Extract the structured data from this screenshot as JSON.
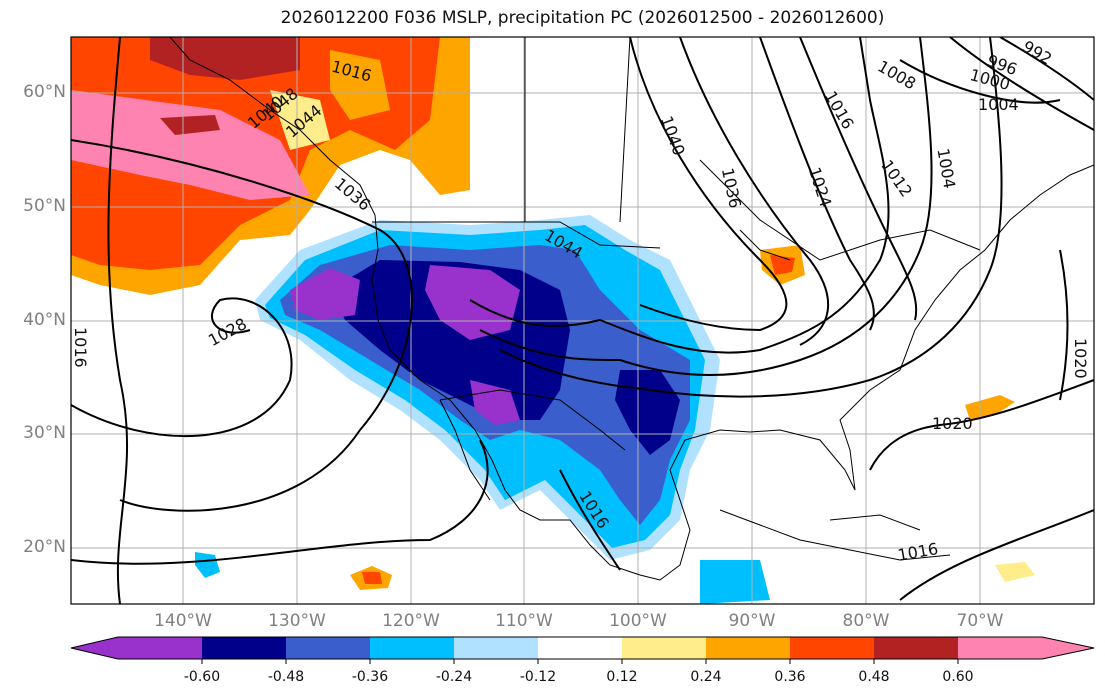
{
  "title": "2026012200 F036 MSLP, precipitation PC (2026012500 - 2026012600)",
  "lat_labels": [
    "60°N",
    "50°N",
    "40°N",
    "30°N",
    "20°N"
  ],
  "lon_labels": [
    "140°W",
    "130°W",
    "120°W",
    "110°W",
    "100°W",
    "90°W",
    "80°W",
    "70°W"
  ],
  "contour_labels": [
    "1016",
    "1028",
    "1044",
    "1040",
    "1036",
    "1024",
    "1016",
    "1008",
    "1000",
    "1004",
    "996",
    "992",
    "1012",
    "1004",
    "1020",
    "1020",
    "1016",
    "1016",
    "1040",
    "1048",
    "1044",
    "1036",
    "1016"
  ],
  "colorbar": {
    "ticks": [
      "-0.60",
      "-0.48",
      "-0.36",
      "-0.24",
      "-0.12",
      "0.12",
      "0.24",
      "0.36",
      "0.48",
      "0.60"
    ],
    "colors": [
      "#9932CC",
      "#00008B",
      "#3A5FCD",
      "#00BFFF",
      "#B0E2FF",
      "#FFFFFF",
      "#FFEC8B",
      "#FFA500",
      "#FF4500",
      "#B22222",
      "#FF83B0"
    ]
  }
}
